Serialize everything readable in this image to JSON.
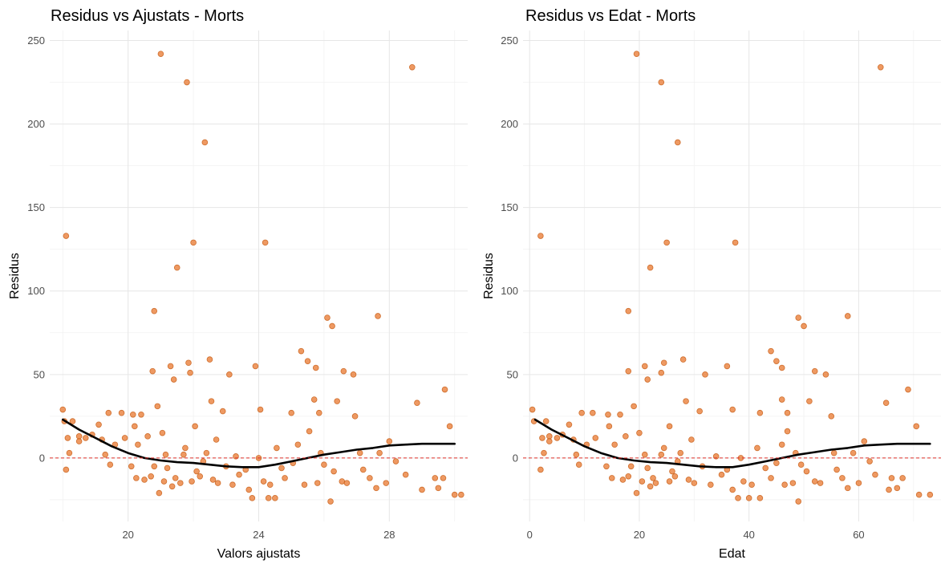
{
  "colors": {
    "point": "#E8772E",
    "point_stroke": "#C55A11",
    "smooth": "#000000",
    "zero_line": "#E0302A",
    "grid_major": "#E6E6E6",
    "grid_minor": "#F2F2F2",
    "tick_text": "#4D4D4D",
    "title_text": "#000000"
  },
  "chart_data": [
    {
      "type": "scatter",
      "title": "Residus vs Ajustats - Morts",
      "xlabel": "Valors ajustats",
      "ylabel": "Residus",
      "xlim": [
        17.6,
        30.4
      ],
      "ylim": [
        -38,
        256
      ],
      "xticks": [
        20,
        24,
        28
      ],
      "xtick_labels": [
        "20",
        "24",
        "28"
      ],
      "yticks": [
        0,
        50,
        100,
        150,
        200,
        250
      ],
      "ytick_labels": [
        "0",
        "50",
        "100",
        "150",
        "200",
        "250"
      ],
      "grid": true,
      "reference_line": {
        "y": 0,
        "style": "dashed"
      },
      "smooth": {
        "x": [
          18.0,
          18.5,
          19.0,
          19.5,
          20.0,
          20.5,
          21.0,
          21.5,
          22.0,
          22.5,
          23.0,
          23.5,
          24.0,
          24.5,
          25.0,
          25.5,
          26.0,
          26.5,
          27.0,
          27.5,
          28.0,
          28.5,
          29.0,
          29.5,
          30.0
        ],
        "y": [
          23,
          17,
          12,
          7,
          3,
          0,
          -1.5,
          -2.5,
          -3,
          -4,
          -5,
          -5.5,
          -5.5,
          -4,
          -2,
          0,
          2,
          3.5,
          5,
          6,
          7.5,
          8,
          8.5,
          8.5,
          8.5
        ]
      },
      "points": [
        [
          18.0,
          29
        ],
        [
          18.05,
          22
        ],
        [
          18.1,
          133
        ],
        [
          18.1,
          -7
        ],
        [
          18.15,
          12
        ],
        [
          18.2,
          3
        ],
        [
          18.3,
          22
        ],
        [
          18.5,
          13
        ],
        [
          18.5,
          10
        ],
        [
          18.7,
          12
        ],
        [
          18.9,
          14
        ],
        [
          19.1,
          20
        ],
        [
          19.2,
          11
        ],
        [
          19.3,
          2
        ],
        [
          19.4,
          27
        ],
        [
          19.45,
          -4
        ],
        [
          19.6,
          8
        ],
        [
          19.8,
          27
        ],
        [
          19.9,
          12
        ],
        [
          20.1,
          -5
        ],
        [
          20.15,
          26
        ],
        [
          20.2,
          19
        ],
        [
          20.25,
          -12
        ],
        [
          20.3,
          8
        ],
        [
          20.4,
          26
        ],
        [
          20.5,
          -13
        ],
        [
          20.6,
          13
        ],
        [
          20.7,
          -11
        ],
        [
          20.75,
          52
        ],
        [
          20.8,
          88
        ],
        [
          20.8,
          -5
        ],
        [
          20.9,
          31
        ],
        [
          20.95,
          -21
        ],
        [
          21.0,
          242
        ],
        [
          21.05,
          15
        ],
        [
          21.1,
          -14
        ],
        [
          21.15,
          2
        ],
        [
          21.2,
          -6
        ],
        [
          21.3,
          55
        ],
        [
          21.35,
          -17
        ],
        [
          21.4,
          47
        ],
        [
          21.45,
          -12
        ],
        [
          21.5,
          114
        ],
        [
          21.6,
          -15
        ],
        [
          21.7,
          2
        ],
        [
          21.75,
          6
        ],
        [
          21.8,
          225
        ],
        [
          21.85,
          57
        ],
        [
          21.9,
          51
        ],
        [
          21.95,
          -14
        ],
        [
          22.0,
          129
        ],
        [
          22.05,
          19
        ],
        [
          22.1,
          -8
        ],
        [
          22.2,
          -11
        ],
        [
          22.3,
          -2
        ],
        [
          22.35,
          189
        ],
        [
          22.4,
          3
        ],
        [
          22.5,
          59
        ],
        [
          22.55,
          34
        ],
        [
          22.6,
          -13
        ],
        [
          22.7,
          11
        ],
        [
          22.75,
          -15
        ],
        [
          22.9,
          28
        ],
        [
          23.0,
          -5
        ],
        [
          23.1,
          50
        ],
        [
          23.2,
          -16
        ],
        [
          23.3,
          1
        ],
        [
          23.4,
          -10
        ],
        [
          23.6,
          -7
        ],
        [
          23.7,
          -19
        ],
        [
          23.8,
          -24
        ],
        [
          23.9,
          55
        ],
        [
          24.0,
          0
        ],
        [
          24.05,
          29
        ],
        [
          24.15,
          -14
        ],
        [
          24.2,
          129
        ],
        [
          24.3,
          -24
        ],
        [
          24.35,
          -16
        ],
        [
          24.5,
          -24
        ],
        [
          24.55,
          6
        ],
        [
          24.7,
          -6
        ],
        [
          24.8,
          -12
        ],
        [
          25.0,
          27
        ],
        [
          25.05,
          -3
        ],
        [
          25.2,
          8
        ],
        [
          25.3,
          64
        ],
        [
          25.4,
          -16
        ],
        [
          25.5,
          58
        ],
        [
          25.55,
          16
        ],
        [
          25.7,
          35
        ],
        [
          25.75,
          54
        ],
        [
          25.8,
          -15
        ],
        [
          25.85,
          27
        ],
        [
          25.9,
          3
        ],
        [
          26.0,
          -4
        ],
        [
          26.1,
          84
        ],
        [
          26.2,
          -26
        ],
        [
          26.25,
          79
        ],
        [
          26.3,
          -8
        ],
        [
          26.4,
          34
        ],
        [
          26.55,
          -14
        ],
        [
          26.6,
          52
        ],
        [
          26.7,
          -15
        ],
        [
          26.9,
          50
        ],
        [
          26.95,
          25
        ],
        [
          27.1,
          3
        ],
        [
          27.2,
          -7
        ],
        [
          27.4,
          -12
        ],
        [
          27.6,
          -18
        ],
        [
          27.65,
          85
        ],
        [
          27.7,
          3
        ],
        [
          27.9,
          -15
        ],
        [
          28.0,
          10
        ],
        [
          28.2,
          -2
        ],
        [
          28.5,
          -10
        ],
        [
          28.7,
          234
        ],
        [
          28.85,
          33
        ],
        [
          29.0,
          -19
        ],
        [
          29.4,
          -12
        ],
        [
          29.5,
          -18
        ],
        [
          29.65,
          -12
        ],
        [
          29.7,
          41
        ],
        [
          29.85,
          19
        ],
        [
          30.0,
          -22
        ],
        [
          30.2,
          -22
        ]
      ]
    },
    {
      "type": "scatter",
      "title": "Residus vs Edat - Morts",
      "xlabel": "Edat",
      "ylabel": "Residus",
      "xlim": [
        -1.2,
        75
      ],
      "ylim": [
        -38,
        256
      ],
      "xticks": [
        0,
        20,
        40,
        60
      ],
      "xtick_labels": [
        "0",
        "20",
        "40",
        "60"
      ],
      "yticks": [
        0,
        50,
        100,
        150,
        200,
        250
      ],
      "ytick_labels": [
        "0",
        "50",
        "100",
        "150",
        "200",
        "250"
      ],
      "grid": true,
      "reference_line": {
        "y": 0,
        "style": "dashed"
      },
      "smooth": {
        "x": [
          1,
          4,
          7,
          10,
          13,
          16,
          19,
          22,
          25,
          28,
          31,
          34,
          37,
          40,
          43,
          46,
          49,
          52,
          55,
          58,
          61,
          64,
          67,
          70,
          73
        ],
        "y": [
          23,
          17,
          12,
          7,
          3,
          0,
          -1.5,
          -2.5,
          -3,
          -4,
          -5,
          -5.5,
          -5.5,
          -4,
          -2,
          0,
          2,
          3.5,
          5,
          6,
          7.5,
          8,
          8.5,
          8.5,
          8.5
        ]
      },
      "points": [
        [
          0.5,
          29
        ],
        [
          0.8,
          22
        ],
        [
          2.0,
          133
        ],
        [
          2.0,
          -7
        ],
        [
          2.3,
          12
        ],
        [
          2.6,
          3
        ],
        [
          3.0,
          22
        ],
        [
          3.6,
          13
        ],
        [
          3.6,
          10
        ],
        [
          5.0,
          12
        ],
        [
          6.0,
          14
        ],
        [
          7.2,
          20
        ],
        [
          8.0,
          11
        ],
        [
          8.5,
          2
        ],
        [
          9.5,
          27
        ],
        [
          9.0,
          -4
        ],
        [
          10.4,
          8
        ],
        [
          11.5,
          27
        ],
        [
          12.0,
          12
        ],
        [
          14.0,
          -5
        ],
        [
          14.3,
          26
        ],
        [
          14.5,
          19
        ],
        [
          15.0,
          -12
        ],
        [
          15.5,
          8
        ],
        [
          16.5,
          26
        ],
        [
          17.0,
          -13
        ],
        [
          17.5,
          13
        ],
        [
          18.0,
          -11
        ],
        [
          18.0,
          52
        ],
        [
          18.0,
          88
        ],
        [
          18.5,
          -5
        ],
        [
          19.0,
          31
        ],
        [
          19.5,
          -21
        ],
        [
          19.5,
          242
        ],
        [
          20.0,
          15
        ],
        [
          20.5,
          -14
        ],
        [
          21.0,
          2
        ],
        [
          21.5,
          -6
        ],
        [
          21.0,
          55
        ],
        [
          22.0,
          -17
        ],
        [
          21.5,
          47
        ],
        [
          22.5,
          -12
        ],
        [
          22.0,
          114
        ],
        [
          23.0,
          -15
        ],
        [
          24.0,
          2
        ],
        [
          24.5,
          6
        ],
        [
          24.0,
          225
        ],
        [
          24.5,
          57
        ],
        [
          24.0,
          51
        ],
        [
          25.5,
          -14
        ],
        [
          25.0,
          129
        ],
        [
          25.5,
          19
        ],
        [
          26.0,
          -8
        ],
        [
          26.5,
          -11
        ],
        [
          27.0,
          -2
        ],
        [
          27.0,
          189
        ],
        [
          27.5,
          3
        ],
        [
          28.0,
          59
        ],
        [
          28.5,
          34
        ],
        [
          29.0,
          -13
        ],
        [
          29.5,
          11
        ],
        [
          30.0,
          -15
        ],
        [
          31.0,
          28
        ],
        [
          31.5,
          -5
        ],
        [
          32.0,
          50
        ],
        [
          33.0,
          -16
        ],
        [
          34.0,
          1
        ],
        [
          35.0,
          -10
        ],
        [
          36.0,
          -7
        ],
        [
          37.0,
          -19
        ],
        [
          38.0,
          -24
        ],
        [
          36.0,
          55
        ],
        [
          38.5,
          0
        ],
        [
          37.0,
          29
        ],
        [
          39.0,
          -14
        ],
        [
          37.5,
          129
        ],
        [
          40.0,
          -24
        ],
        [
          40.5,
          -16
        ],
        [
          42.0,
          -24
        ],
        [
          41.5,
          6
        ],
        [
          43.0,
          -6
        ],
        [
          44.0,
          -12
        ],
        [
          42.0,
          27
        ],
        [
          45.0,
          -3
        ],
        [
          46.0,
          8
        ],
        [
          44.0,
          64
        ],
        [
          46.5,
          -16
        ],
        [
          45.0,
          58
        ],
        [
          47.0,
          16
        ],
        [
          46.0,
          35
        ],
        [
          46.0,
          54
        ],
        [
          48.0,
          -15
        ],
        [
          47.0,
          27
        ],
        [
          48.5,
          3
        ],
        [
          49.5,
          -4
        ],
        [
          49.0,
          84
        ],
        [
          49.0,
          -26
        ],
        [
          50.0,
          79
        ],
        [
          50.5,
          -8
        ],
        [
          51.0,
          34
        ],
        [
          52.0,
          -14
        ],
        [
          52.0,
          52
        ],
        [
          53.0,
          -15
        ],
        [
          54.0,
          50
        ],
        [
          55.0,
          25
        ],
        [
          55.5,
          3
        ],
        [
          56.0,
          -7
        ],
        [
          57.0,
          -12
        ],
        [
          58.0,
          -18
        ],
        [
          58.0,
          85
        ],
        [
          59.0,
          3
        ],
        [
          60.0,
          -15
        ],
        [
          61.0,
          10
        ],
        [
          62.0,
          -2
        ],
        [
          63.0,
          -10
        ],
        [
          64.0,
          234
        ],
        [
          65.0,
          33
        ],
        [
          65.5,
          -19
        ],
        [
          66.0,
          -12
        ],
        [
          67.0,
          -18
        ],
        [
          68.0,
          -12
        ],
        [
          69.0,
          41
        ],
        [
          70.5,
          19
        ],
        [
          71.0,
          -22
        ],
        [
          73.0,
          -22
        ]
      ]
    }
  ]
}
